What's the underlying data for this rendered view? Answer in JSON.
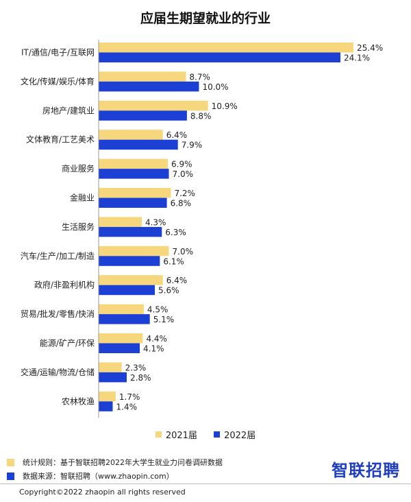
{
  "chart_data": {
    "type": "bar",
    "orientation": "horizontal",
    "title": "应届生期望就业的行业",
    "categories": [
      "IT/通信/电子/互联网",
      "文化/传媒/娱乐/体育",
      "房地产/建筑业",
      "文体教育/工艺美术",
      "商业服务",
      "金融业",
      "生活服务",
      "汽车/生产/加工/制造",
      "政府/非盈利机构",
      "贸易/批发/零售/快消",
      "能源/矿产/环保",
      "交通/运输/物流/仓储",
      "农林牧渔"
    ],
    "series": [
      {
        "name": "2021届",
        "color": "#f7d77d",
        "values": [
          25.4,
          8.7,
          10.9,
          6.4,
          6.9,
          7.2,
          4.3,
          7.0,
          6.4,
          4.5,
          4.4,
          2.3,
          1.7
        ],
        "labels": [
          "25.4%",
          "8.7%",
          "10.9%",
          "6.4%",
          "6.9%",
          "7.2%",
          "4.3%",
          "7.0%",
          "6.4%",
          "4.5%",
          "4.4%",
          "2.3%",
          "1.7%"
        ]
      },
      {
        "name": "2022届",
        "color": "#1c3fd4",
        "values": [
          24.1,
          10.0,
          8.8,
          7.9,
          7.0,
          6.8,
          6.3,
          6.1,
          5.6,
          5.1,
          4.1,
          2.8,
          1.4
        ],
        "labels": [
          "24.1%",
          "10.0%",
          "8.8%",
          "7.9%",
          "7.0%",
          "6.8%",
          "6.3%",
          "6.1%",
          "5.6%",
          "5.1%",
          "4.1%",
          "2.8%",
          "1.4%"
        ]
      }
    ],
    "xlim": [
      0,
      27
    ],
    "grid": false,
    "legend": "bottom"
  },
  "footer": {
    "rule_text": "统计规则：基于智联招聘2022年大学生就业力问卷调研数据",
    "source_text": "数据来源：智联招聘（www.zhaopin.com）",
    "logo_text": "智联招聘",
    "copyright": "Copyright©2022 zhaopin all rights reserved"
  }
}
